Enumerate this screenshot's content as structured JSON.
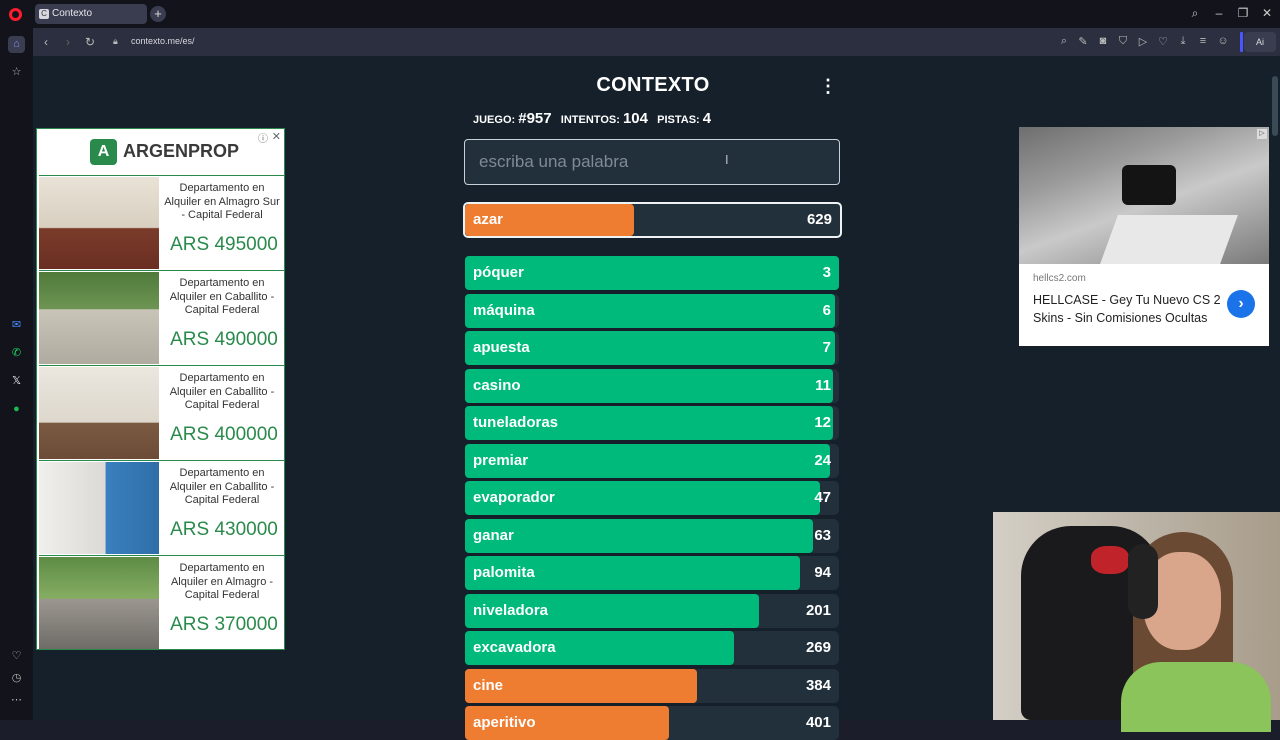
{
  "browser": {
    "tab_title": "Contexto",
    "tab_favicon": "C",
    "url": "contexto.me/es/",
    "ai_label": "Ai"
  },
  "game": {
    "title": "CONTEXTO",
    "stats": {
      "game_label": "JUEGO:",
      "game_number": "#957",
      "attempts_label": "INTENTOS:",
      "attempts": "104",
      "hints_label": "PISTAS:",
      "hints": "4"
    },
    "input_placeholder": "escriba una palabra",
    "current_guess": {
      "word": "azar",
      "rank": "629",
      "fill": 0.45,
      "color": "orange"
    },
    "guesses": [
      {
        "word": "póquer",
        "rank": "3",
        "fill": 1.0,
        "color": "green"
      },
      {
        "word": "máquina",
        "rank": "6",
        "fill": 0.99,
        "color": "green"
      },
      {
        "word": "apuesta",
        "rank": "7",
        "fill": 0.99,
        "color": "green"
      },
      {
        "word": "casino",
        "rank": "11",
        "fill": 0.985,
        "color": "green"
      },
      {
        "word": "tuneladoras",
        "rank": "12",
        "fill": 0.985,
        "color": "green"
      },
      {
        "word": "premiar",
        "rank": "24",
        "fill": 0.975,
        "color": "green"
      },
      {
        "word": "evaporador",
        "rank": "47",
        "fill": 0.95,
        "color": "green"
      },
      {
        "word": "ganar",
        "rank": "63",
        "fill": 0.93,
        "color": "green"
      },
      {
        "word": "palomita",
        "rank": "94",
        "fill": 0.895,
        "color": "green"
      },
      {
        "word": "niveladora",
        "rank": "201",
        "fill": 0.785,
        "color": "green"
      },
      {
        "word": "excavadora",
        "rank": "269",
        "fill": 0.72,
        "color": "green"
      },
      {
        "word": "cine",
        "rank": "384",
        "fill": 0.62,
        "color": "orange"
      },
      {
        "word": "aperitivo",
        "rank": "401",
        "fill": 0.545,
        "color": "orange"
      }
    ]
  },
  "ad_left": {
    "brand": "ARGENPROP",
    "listings": [
      {
        "desc": "Departamento en Alquiler en Almagro Sur - Capital Federal",
        "price": "ARS 495000"
      },
      {
        "desc": "Departamento en Alquiler en Caballito - Capital Federal",
        "price": "ARS 490000"
      },
      {
        "desc": "Departamento en Alquiler en Caballito - Capital Federal",
        "price": "ARS 400000"
      },
      {
        "desc": "Departamento en Alquiler en Caballito - Capital Federal",
        "price": "ARS 430000"
      },
      {
        "desc": "Departamento en Alquiler en Almagro - Capital Federal",
        "price": "ARS 370000"
      }
    ]
  },
  "ad_right": {
    "domain": "hellcs2.com",
    "headline": "HELLCASE - Gey Tu Nuevo CS 2 Skins - Sin Comisiones Ocultas"
  },
  "colors": {
    "green": "#00ba7c",
    "orange": "#ef7d31",
    "background": "#15202b"
  }
}
